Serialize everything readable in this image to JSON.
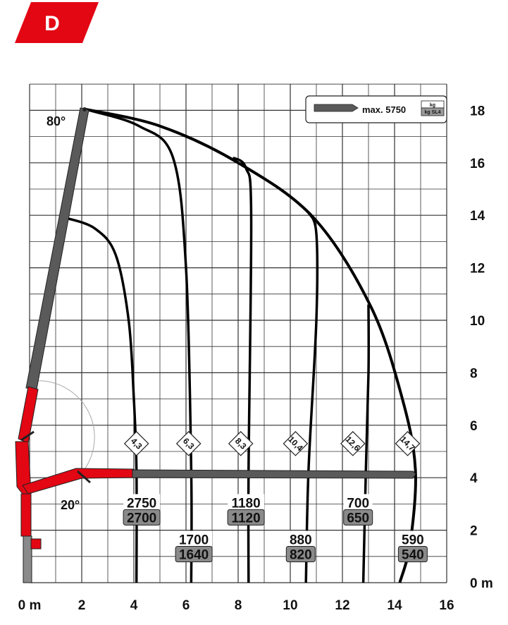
{
  "badge": {
    "letter": "D",
    "color": "#e30613"
  },
  "colors": {
    "boom_red": "#e30613",
    "boom_gray": "#5a5a5a",
    "grid": "#333333",
    "curve": "#000000",
    "cap_box": "#8a8a8a"
  },
  "legend": {
    "text": "max. 5750",
    "unit_top": "kg",
    "unit_bottom": "kg SL4"
  },
  "angles": {
    "top": "80°",
    "bottom": "20°"
  },
  "chart_data": {
    "type": "load-diagram",
    "x_ticks": [
      "0 m",
      "2",
      "4",
      "6",
      "8",
      "10",
      "12",
      "14",
      "16"
    ],
    "y_ticks": [
      "0 m",
      "2",
      "4",
      "6",
      "8",
      "10",
      "12",
      "14",
      "16",
      "18"
    ],
    "xlim": [
      0,
      16
    ],
    "ylim": [
      0,
      18
    ],
    "grid": true,
    "reach_labels": [
      {
        "label": "4,3",
        "x": 4.1
      },
      {
        "label": "6,3",
        "x": 6.1
      },
      {
        "label": "8,3",
        "x": 8.1
      },
      {
        "label": "10,4",
        "x": 10.2
      },
      {
        "label": "12,6",
        "x": 12.4
      },
      {
        "label": "14,7",
        "x": 14.5
      }
    ],
    "capacities": [
      {
        "x": 4.3,
        "y": 3.0,
        "top": "2750",
        "bottom": "2700"
      },
      {
        "x": 6.3,
        "y": 1.6,
        "top": "1700",
        "bottom": "1640"
      },
      {
        "x": 8.3,
        "y": 3.0,
        "top": "1180",
        "bottom": "1120"
      },
      {
        "x": 10.4,
        "y": 1.6,
        "top": "880",
        "bottom": "820"
      },
      {
        "x": 12.6,
        "y": 3.0,
        "top": "700",
        "bottom": "650"
      },
      {
        "x": 14.7,
        "y": 1.6,
        "top": "590",
        "bottom": "540"
      }
    ],
    "envelope": [
      [
        2.1,
        18.05
      ],
      [
        5.0,
        17.4
      ],
      [
        8.0,
        16.0
      ],
      [
        10.9,
        13.9
      ],
      [
        13.1,
        10.5
      ],
      [
        14.3,
        7.0
      ],
      [
        14.8,
        4.3
      ],
      [
        14.6,
        1.5
      ],
      [
        14.2,
        0
      ]
    ],
    "inner_boundary": [
      [
        1.4,
        13.9
      ],
      [
        2.5,
        13.5
      ],
      [
        3.3,
        12.5
      ],
      [
        3.8,
        10.0
      ],
      [
        4.0,
        7.0
      ],
      [
        4.1,
        4.3
      ],
      [
        4.1,
        0
      ]
    ],
    "reach_curves": [
      [
        [
          2.3,
          18.0
        ],
        [
          4.2,
          17.4
        ],
        [
          5.5,
          16.2
        ],
        [
          6.0,
          12.0
        ],
        [
          6.2,
          4.3
        ],
        [
          6.2,
          0
        ]
      ],
      [
        [
          7.8,
          16.2
        ],
        [
          8.3,
          15.8
        ],
        [
          8.5,
          14.0
        ],
        [
          8.4,
          4.3
        ],
        [
          8.4,
          0
        ]
      ],
      [
        [
          10.7,
          14.1
        ],
        [
          11.0,
          13.3
        ],
        [
          11.0,
          10.0
        ],
        [
          10.7,
          4.3
        ],
        [
          10.6,
          0
        ]
      ],
      [
        [
          13.0,
          10.6
        ],
        [
          13.0,
          8.0
        ],
        [
          12.9,
          4.3
        ],
        [
          12.8,
          0
        ]
      ]
    ]
  }
}
